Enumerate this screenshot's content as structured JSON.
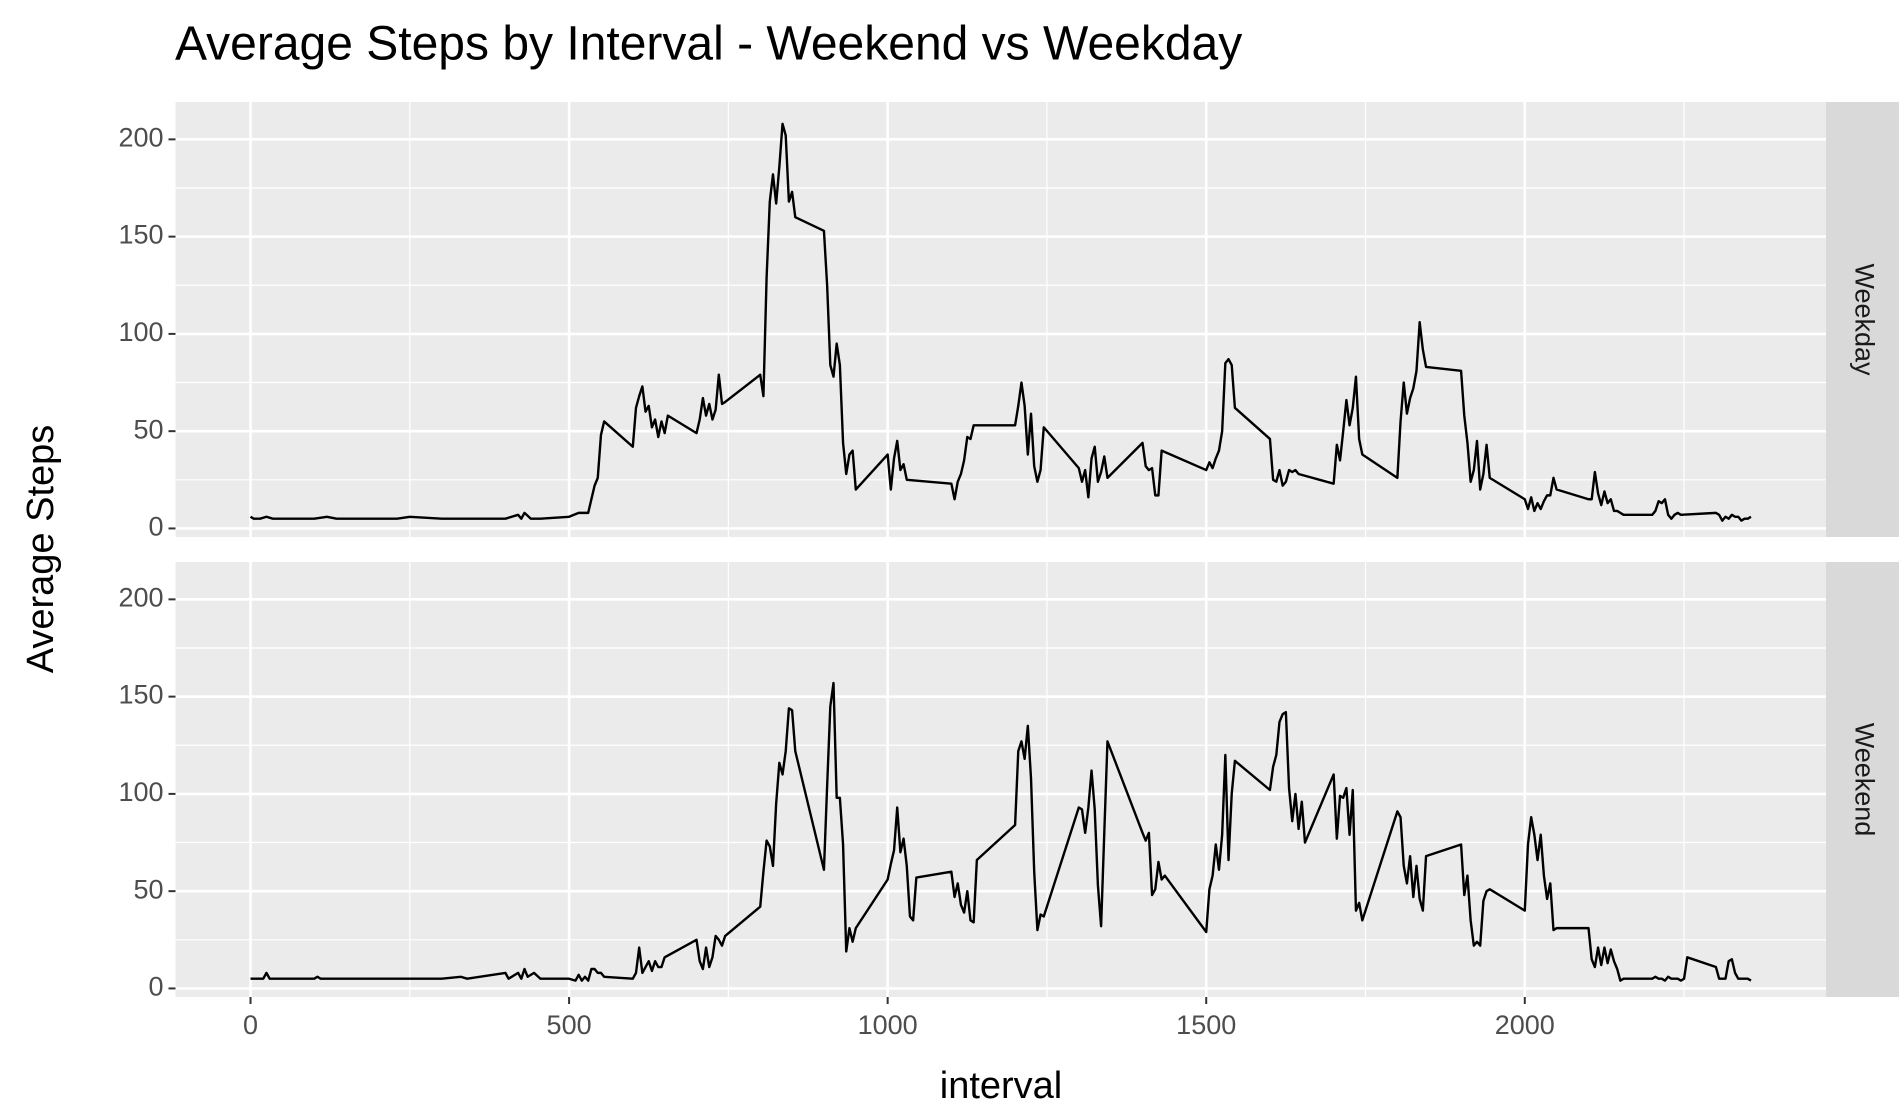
{
  "chart_data": [
    {
      "type": "line",
      "title": "Average Steps by Interval - Weekend vs Weekday",
      "ylabel": "Average Steps",
      "facet": "Weekday",
      "x": [
        0,
        5,
        15,
        25,
        35,
        45,
        55,
        100,
        120,
        135,
        200,
        230,
        250,
        300,
        330,
        400,
        420,
        425,
        430,
        440,
        455,
        500,
        515,
        530,
        540,
        545,
        550,
        555,
        600,
        605,
        610,
        615,
        620,
        625,
        630,
        635,
        640,
        645,
        650,
        655,
        700,
        705,
        710,
        715,
        720,
        725,
        730,
        735,
        740,
        745,
        800,
        805,
        810,
        815,
        820,
        825,
        830,
        835,
        840,
        845,
        850,
        855,
        900,
        905,
        910,
        915,
        920,
        925,
        930,
        935,
        940,
        945,
        950,
        1000,
        1005,
        1010,
        1015,
        1020,
        1025,
        1030,
        1100,
        1105,
        1110,
        1115,
        1120,
        1125,
        1130,
        1135,
        1140,
        1200,
        1205,
        1210,
        1215,
        1220,
        1225,
        1230,
        1235,
        1240,
        1245,
        1300,
        1305,
        1310,
        1315,
        1320,
        1325,
        1330,
        1335,
        1340,
        1345,
        1400,
        1405,
        1410,
        1415,
        1420,
        1425,
        1430,
        1500,
        1505,
        1510,
        1515,
        1520,
        1525,
        1530,
        1535,
        1540,
        1545,
        1600,
        1605,
        1610,
        1615,
        1620,
        1625,
        1630,
        1635,
        1640,
        1645,
        1700,
        1705,
        1710,
        1715,
        1720,
        1725,
        1730,
        1735,
        1740,
        1745,
        1800,
        1805,
        1810,
        1815,
        1820,
        1825,
        1830,
        1835,
        1840,
        1845,
        1900,
        1905,
        1910,
        1915,
        1920,
        1925,
        1930,
        1935,
        1940,
        1945,
        2000,
        2005,
        2010,
        2015,
        2020,
        2025,
        2030,
        2035,
        2040,
        2045,
        2050,
        2100,
        2105,
        2110,
        2115,
        2120,
        2125,
        2130,
        2135,
        2140,
        2145,
        2150,
        2155,
        2200,
        2205,
        2210,
        2215,
        2220,
        2225,
        2230,
        2235,
        2240,
        2245,
        2300,
        2305,
        2310,
        2315,
        2320,
        2325,
        2330,
        2335,
        2340,
        2345,
        2350,
        2355
      ],
      "series": [
        {
          "color": "#000000",
          "values": [
            6,
            5,
            5,
            6,
            5,
            5,
            5,
            5,
            6,
            5,
            5,
            5,
            6,
            5,
            5,
            5,
            7,
            5,
            8,
            5,
            5,
            6,
            8,
            8,
            22,
            26,
            48,
            55,
            42,
            62,
            68,
            73,
            60,
            63,
            52,
            56,
            47,
            55,
            49,
            58,
            49,
            56,
            67,
            58,
            64,
            56,
            61,
            79,
            64,
            65,
            79,
            68,
            129,
            168,
            182,
            167,
            186,
            208,
            202,
            168,
            173,
            160,
            153,
            125,
            84,
            78,
            95,
            84,
            44,
            28,
            38,
            40,
            20,
            38,
            20,
            36,
            45,
            30,
            33,
            25,
            23,
            15,
            24,
            28,
            35,
            47,
            46,
            53,
            53,
            53,
            63,
            75,
            63,
            38,
            59,
            32,
            24,
            30,
            52,
            31,
            24,
            30,
            16,
            36,
            42,
            24,
            29,
            37,
            26,
            44,
            32,
            30,
            31,
            17,
            17,
            40,
            30,
            34,
            31,
            36,
            40,
            50,
            85,
            87,
            84,
            62,
            46,
            25,
            24,
            30,
            22,
            24,
            30,
            29,
            30,
            28,
            23,
            43,
            35,
            50,
            66,
            53,
            62,
            78,
            46,
            38,
            26,
            55,
            75,
            59,
            67,
            72,
            81,
            106,
            92,
            83,
            81,
            58,
            44,
            24,
            30,
            45,
            20,
            28,
            43,
            26,
            15,
            10,
            16,
            9,
            13,
            10,
            14,
            17,
            17,
            26,
            20,
            15,
            15,
            29,
            18,
            12,
            19,
            13,
            15,
            9,
            9,
            8,
            7,
            7,
            9,
            14,
            13,
            15,
            7,
            5,
            7,
            8,
            7,
            8,
            7,
            4,
            6,
            5,
            7,
            6,
            6,
            4,
            5,
            5,
            6
          ]
        }
      ],
      "xlim": [
        -117.75,
        2472.75
      ],
      "xticks": [
        0,
        500,
        1000,
        1500,
        2000
      ],
      "ylim": [
        -4.4,
        219.2
      ],
      "yticks": [
        0,
        50,
        100,
        150,
        200
      ],
      "grid": true
    },
    {
      "type": "line",
      "xlabel": "interval",
      "facet": "Weekend",
      "x": [
        0,
        20,
        25,
        30,
        100,
        105,
        110,
        130,
        200,
        300,
        330,
        340,
        400,
        405,
        420,
        425,
        430,
        435,
        445,
        455,
        500,
        510,
        515,
        520,
        525,
        530,
        535,
        540,
        545,
        550,
        555,
        600,
        605,
        610,
        615,
        620,
        625,
        630,
        635,
        640,
        645,
        650,
        700,
        705,
        710,
        715,
        720,
        725,
        730,
        735,
        740,
        745,
        800,
        805,
        810,
        815,
        820,
        825,
        830,
        835,
        840,
        845,
        850,
        855,
        900,
        905,
        910,
        915,
        920,
        925,
        930,
        935,
        940,
        945,
        950,
        1000,
        1005,
        1010,
        1015,
        1020,
        1025,
        1030,
        1035,
        1040,
        1045,
        1100,
        1105,
        1110,
        1115,
        1120,
        1125,
        1130,
        1135,
        1140,
        1200,
        1205,
        1210,
        1215,
        1220,
        1225,
        1230,
        1235,
        1240,
        1245,
        1300,
        1305,
        1310,
        1315,
        1320,
        1325,
        1330,
        1335,
        1340,
        1345,
        1400,
        1405,
        1410,
        1415,
        1420,
        1425,
        1430,
        1435,
        1500,
        1505,
        1510,
        1515,
        1520,
        1525,
        1530,
        1535,
        1540,
        1545,
        1600,
        1605,
        1610,
        1615,
        1620,
        1625,
        1630,
        1635,
        1640,
        1645,
        1650,
        1655,
        1700,
        1705,
        1710,
        1715,
        1720,
        1725,
        1730,
        1735,
        1740,
        1745,
        1800,
        1805,
        1810,
        1815,
        1820,
        1825,
        1830,
        1835,
        1840,
        1845,
        1900,
        1905,
        1910,
        1915,
        1920,
        1925,
        1930,
        1935,
        1940,
        1945,
        2000,
        2005,
        2010,
        2015,
        2020,
        2025,
        2030,
        2035,
        2040,
        2045,
        2050,
        2100,
        2105,
        2110,
        2115,
        2120,
        2125,
        2130,
        2135,
        2140,
        2145,
        2150,
        2155,
        2200,
        2205,
        2210,
        2215,
        2220,
        2225,
        2230,
        2235,
        2240,
        2245,
        2250,
        2255,
        2300,
        2305,
        2310,
        2315,
        2320,
        2325,
        2330,
        2335,
        2340,
        2345,
        2350,
        2355
      ],
      "series": [
        {
          "color": "#000000",
          "values": [
            5,
            5,
            8,
            5,
            5,
            6,
            5,
            5,
            5,
            5,
            6,
            5,
            8,
            5,
            8,
            5,
            10,
            6,
            8,
            5,
            5,
            4,
            7,
            4,
            6,
            4,
            10,
            10,
            8,
            8,
            6,
            5,
            8,
            21,
            8,
            11,
            14,
            9,
            14,
            11,
            11,
            16,
            25,
            14,
            10,
            21,
            11,
            16,
            27,
            25,
            22,
            27,
            42,
            60,
            76,
            73,
            63,
            95,
            116,
            110,
            122,
            144,
            143,
            122,
            61,
            104,
            145,
            157,
            98,
            98,
            74,
            19,
            31,
            24,
            31,
            56,
            64,
            71,
            93,
            70,
            77,
            63,
            37,
            35,
            57,
            60,
            47,
            54,
            43,
            39,
            50,
            35,
            34,
            66,
            84,
            122,
            127,
            118,
            135,
            108,
            60,
            30,
            38,
            37,
            93,
            92,
            80,
            93,
            112,
            92,
            53,
            32,
            80,
            127,
            80,
            76,
            80,
            48,
            51,
            65,
            56,
            58,
            29,
            51,
            58,
            74,
            61,
            79,
            120,
            66,
            100,
            117,
            102,
            114,
            120,
            137,
            141,
            142,
            103,
            86,
            100,
            82,
            96,
            75,
            110,
            77,
            99,
            98,
            103,
            79,
            102,
            40,
            44,
            35,
            91,
            88,
            63,
            54,
            68,
            47,
            63,
            46,
            40,
            68,
            74,
            48,
            58,
            35,
            22,
            24,
            22,
            45,
            50,
            51,
            40,
            74,
            88,
            79,
            66,
            79,
            58,
            46,
            54,
            30,
            31,
            31,
            15,
            11,
            21,
            12,
            21,
            13,
            20,
            14,
            10,
            4,
            5,
            5,
            6,
            5,
            5,
            4,
            6,
            5,
            5,
            5,
            4,
            5,
            16,
            11,
            5,
            5,
            5,
            14,
            15,
            8,
            5,
            5,
            5,
            5,
            4
          ]
        }
      ],
      "xlim": [
        -117.75,
        2472.75
      ],
      "xticks": [
        0,
        500,
        1000,
        1500,
        2000
      ],
      "ylim": [
        -4.4,
        219.2
      ],
      "yticks": [
        0,
        50,
        100,
        150,
        200
      ],
      "grid": true
    }
  ]
}
